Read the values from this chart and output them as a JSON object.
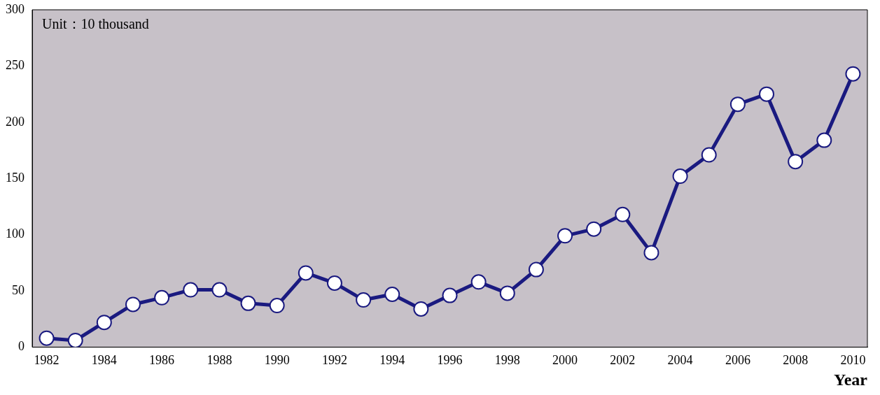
{
  "chart_data": {
    "type": "line",
    "xlabel": "Year",
    "annotations": [
      "Unit：10 thousand"
    ],
    "categories": [
      "1982",
      null,
      "1984",
      null,
      "1986",
      null,
      "1988",
      null,
      "1990",
      null,
      "1992",
      null,
      "1994",
      null,
      "1996",
      null,
      "1998",
      null,
      "2000",
      null,
      "2002",
      null,
      "2004",
      null,
      "2006",
      null,
      "2008",
      null,
      "2010"
    ],
    "series": [
      {
        "color": "#1a1a80",
        "values": [
          8,
          6,
          22,
          38,
          44,
          51,
          51,
          39,
          37,
          66,
          57,
          42,
          47,
          34,
          46,
          58,
          48,
          69,
          99,
          105,
          118,
          84,
          152,
          171,
          216,
          225,
          165,
          184,
          243
        ]
      }
    ],
    "ylim": [
      0,
      300
    ],
    "yticks": [
      0,
      50,
      100,
      150,
      200,
      250,
      300
    ],
    "grid": false,
    "legend": false,
    "marker": "circle",
    "line_style": "solid"
  }
}
